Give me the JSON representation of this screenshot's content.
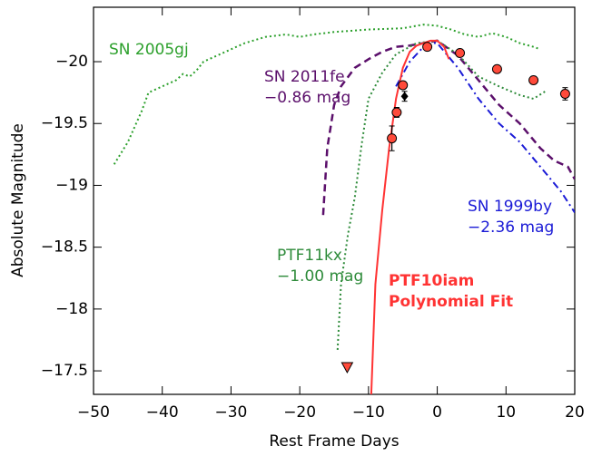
{
  "chart_data": {
    "type": "line",
    "x_label": "Rest Frame Days",
    "y_label": "Absolute Magnitude",
    "xlim": [
      -50,
      20
    ],
    "xticks": [
      {
        "value": -50,
        "label": "−50"
      },
      {
        "value": -40,
        "label": "−40"
      },
      {
        "value": -30,
        "label": "−30"
      },
      {
        "value": -20,
        "label": "−20"
      },
      {
        "value": -10,
        "label": "−10"
      },
      0,
      10,
      20
    ],
    "ylim": [
      -17.31,
      -20.44
    ],
    "yticks": [
      {
        "value": -20,
        "label": "−20"
      },
      {
        "value": -19.5,
        "label": "−19.5"
      },
      {
        "value": -19,
        "label": "−19"
      },
      {
        "value": -18.5,
        "label": "−18.5"
      },
      {
        "value": -18,
        "label": "−18"
      },
      {
        "value": -17.5,
        "label": "−17.5"
      }
    ],
    "series": [
      {
        "name": "SN 2005gj",
        "color": "#2ca02c",
        "style": "dotted",
        "x": [
          -47,
          -45,
          -43,
          -42,
          -40,
          -38,
          -37,
          -36,
          -35,
          -34,
          -32,
          -30,
          -28,
          -25,
          -22,
          -20,
          -18,
          -15,
          -10,
          -5,
          -2,
          0,
          2,
          4,
          6,
          8,
          10,
          12,
          14,
          15
        ],
        "values": [
          -19.17,
          -19.35,
          -19.6,
          -19.75,
          -19.8,
          -19.85,
          -19.9,
          -19.88,
          -19.93,
          -20.0,
          -20.05,
          -20.1,
          -20.15,
          -20.2,
          -20.22,
          -20.2,
          -20.22,
          -20.24,
          -20.26,
          -20.27,
          -20.3,
          -20.29,
          -20.26,
          -20.22,
          -20.2,
          -20.23,
          -20.2,
          -20.15,
          -20.12,
          -20.1
        ]
      },
      {
        "name": "SN 2011fe",
        "note": "−0.86 mag",
        "color": "#5b0f6b",
        "style": "dashed",
        "x": [
          -16.6,
          -16,
          -15,
          -14,
          -12,
          -10,
          -8,
          -6,
          -4,
          -2,
          0,
          3,
          6,
          9,
          12,
          15,
          17,
          19,
          20
        ],
        "values": [
          -18.76,
          -19.3,
          -19.65,
          -19.8,
          -19.95,
          -20.02,
          -20.08,
          -20.12,
          -20.13,
          -20.15,
          -20.17,
          -20.05,
          -19.85,
          -19.65,
          -19.5,
          -19.3,
          -19.2,
          -19.15,
          -19.05
        ]
      },
      {
        "name": "PTF11kx",
        "note": "−1.00 mag",
        "color": "#2e8b3a",
        "style": "dotted",
        "x": [
          -14.5,
          -14,
          -13,
          -12,
          -11,
          -10,
          -8,
          -6,
          -3,
          0,
          3,
          6,
          9,
          12,
          14,
          16
        ],
        "values": [
          -17.67,
          -18.2,
          -18.6,
          -18.9,
          -19.33,
          -19.7,
          -19.91,
          -20.06,
          -20.15,
          -20.17,
          -20.06,
          -19.88,
          -19.8,
          -19.73,
          -19.7,
          -19.77
        ]
      },
      {
        "name": "SN 1999by",
        "note": "−2.36 mag",
        "color": "#1a1ad6",
        "style": "dashdot",
        "x": [
          -6,
          -4,
          -2,
          -1,
          0,
          3,
          6,
          9,
          12,
          15,
          18,
          20
        ],
        "values": [
          -19.8,
          -20.0,
          -20.12,
          -20.15,
          -20.15,
          -19.95,
          -19.7,
          -19.5,
          -19.35,
          -19.15,
          -18.95,
          -18.78
        ]
      },
      {
        "name": "PTF10iam",
        "note": "Polynomial Fit",
        "color": "#ff3333",
        "style": "solid",
        "x": [
          -9.6,
          -9,
          -8,
          -7,
          -6,
          -5,
          -4,
          -3,
          -2,
          -1,
          0,
          1,
          1.7
        ],
        "values": [
          -17.31,
          -18.2,
          -18.8,
          -19.3,
          -19.7,
          -19.95,
          -20.08,
          -20.13,
          -20.15,
          -20.17,
          -20.17,
          -20.12,
          -20.02
        ]
      },
      {
        "color": "#ff4a3a",
        "style": "circles",
        "x": [
          -6.6,
          -5.9,
          -5.0,
          -1.45,
          3.3,
          8.7,
          14.0,
          18.6
        ],
        "values": [
          -19.38,
          -19.59,
          -19.81,
          -20.12,
          -20.07,
          -19.94,
          -19.85,
          -19.74
        ],
        "errors": [
          0.1,
          0.04,
          0.03,
          0.02,
          0.02,
          0.02,
          0.03,
          0.05
        ]
      },
      {
        "color": "#000000",
        "style": "diamonds",
        "x": [
          -4.75
        ],
        "values": [
          -19.72
        ],
        "errors": [
          0.04
        ]
      },
      {
        "color": "#ff4a3a",
        "style": "triangles",
        "x": [
          -13.1
        ],
        "values": [
          -17.53
        ]
      }
    ]
  }
}
